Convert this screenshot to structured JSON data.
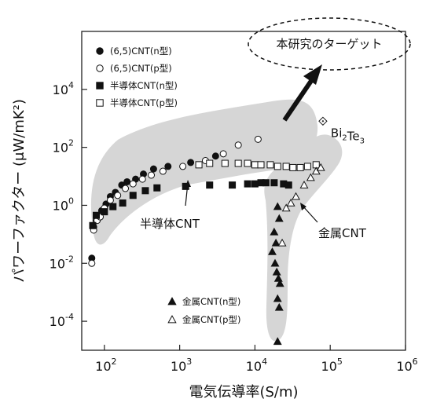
{
  "chart_data": {
    "type": "scatter",
    "xlabel": "電気伝導率(S/m)",
    "ylabel": "パワーファクター (μW/mK²)",
    "x_scale": "log",
    "y_scale": "log",
    "xlim": [
      50,
      1000000
    ],
    "ylim": [
      1e-05,
      1000000
    ],
    "x_ticks": [
      {
        "value": 100,
        "base": "10",
        "exp": "2"
      },
      {
        "value": 1000,
        "base": "10",
        "exp": "3"
      },
      {
        "value": 10000,
        "base": "10",
        "exp": "4"
      },
      {
        "value": 100000,
        "base": "10",
        "exp": "5"
      },
      {
        "value": 1000000,
        "base": "10",
        "exp": "6"
      }
    ],
    "y_ticks": [
      {
        "value": 0.0001,
        "base": "10",
        "exp": "-4"
      },
      {
        "value": 0.01,
        "base": "10",
        "exp": "-2"
      },
      {
        "value": 1,
        "base": "10",
        "exp": "0"
      },
      {
        "value": 100,
        "base": "10",
        "exp": "2"
      },
      {
        "value": 10000,
        "base": "10",
        "exp": "4"
      }
    ],
    "grid": false,
    "legend_position": "top-left (upper) and bottom (metallic series)",
    "series": [
      {
        "name": "(6,5)CNT(n型)",
        "marker": "circle-filled",
        "points": [
          [
            68,
            0.015
          ],
          [
            72,
            0.18
          ],
          [
            78,
            0.3
          ],
          [
            85,
            0.45
          ],
          [
            92,
            0.65
          ],
          [
            105,
            1.1
          ],
          [
            120,
            2.0
          ],
          [
            140,
            2.8
          ],
          [
            170,
            5.0
          ],
          [
            200,
            6.5
          ],
          [
            260,
            8.0
          ],
          [
            330,
            12
          ],
          [
            450,
            18
          ],
          [
            700,
            22
          ],
          [
            1400,
            30
          ],
          [
            3000,
            50
          ]
        ]
      },
      {
        "name": "(6,5)CNT(p型)",
        "marker": "circle-open",
        "points": [
          [
            68,
            0.01
          ],
          [
            72,
            0.14
          ],
          [
            80,
            0.3
          ],
          [
            88,
            0.4
          ],
          [
            100,
            0.8
          ],
          [
            120,
            1.5
          ],
          [
            150,
            2.2
          ],
          [
            190,
            3.8
          ],
          [
            240,
            5.5
          ],
          [
            320,
            8.0
          ],
          [
            420,
            11
          ],
          [
            600,
            15
          ],
          [
            1100,
            22
          ],
          [
            2200,
            35
          ],
          [
            3800,
            60
          ],
          [
            6000,
            120
          ],
          [
            11000,
            190
          ]
        ]
      },
      {
        "name": "半導体CNT(n型)",
        "marker": "square-filled",
        "points": [
          [
            70,
            0.2
          ],
          [
            78,
            0.45
          ],
          [
            100,
            0.6
          ],
          [
            130,
            0.9
          ],
          [
            175,
            1.2
          ],
          [
            240,
            2.2
          ],
          [
            350,
            3.2
          ],
          [
            500,
            4.0
          ],
          [
            1200,
            4.5
          ],
          [
            2500,
            5.0
          ],
          [
            5000,
            5.0
          ],
          [
            8000,
            5.5
          ],
          [
            10000,
            5.5
          ],
          [
            12000,
            6.0
          ],
          [
            14000,
            6.0
          ],
          [
            18000,
            6.0
          ],
          [
            24000,
            5.5
          ],
          [
            28000,
            5.0
          ]
        ]
      },
      {
        "name": "半導体CNT(p型)",
        "marker": "square-open",
        "points": [
          [
            1800,
            25
          ],
          [
            2500,
            28
          ],
          [
            4000,
            28
          ],
          [
            6000,
            28
          ],
          [
            8000,
            28
          ],
          [
            10000,
            25
          ],
          [
            12000,
            25
          ],
          [
            16000,
            25
          ],
          [
            20000,
            22
          ],
          [
            26000,
            22
          ],
          [
            32000,
            20
          ],
          [
            40000,
            20
          ],
          [
            50000,
            22
          ],
          [
            65000,
            25
          ]
        ]
      },
      {
        "name": "金属CNT(n型)",
        "marker": "triangle-filled",
        "points": [
          [
            20000,
            0.9
          ],
          [
            21000,
            0.35
          ],
          [
            18000,
            0.12
          ],
          [
            19000,
            0.05
          ],
          [
            17000,
            0.025
          ],
          [
            18500,
            0.01
          ],
          [
            19500,
            0.005
          ],
          [
            20500,
            0.003
          ],
          [
            21500,
            0.002
          ],
          [
            20000,
            0.0006
          ],
          [
            21000,
            0.0003
          ],
          [
            20000,
            2e-05
          ]
        ]
      },
      {
        "name": "金属CNT(p型)",
        "marker": "triangle-open",
        "points": [
          [
            23000,
            0.05
          ],
          [
            26000,
            0.8
          ],
          [
            30000,
            1.2
          ],
          [
            35000,
            2.0
          ],
          [
            45000,
            5.0
          ],
          [
            55000,
            9.0
          ],
          [
            65000,
            15
          ],
          [
            75000,
            20
          ]
        ]
      }
    ],
    "reference_point": {
      "label": "Bi2Te3",
      "x": 80000,
      "y": 800,
      "marker": "diamond-dotted"
    },
    "annotations": [
      {
        "id": "semiconductor",
        "text": "半導体CNT"
      },
      {
        "id": "metallic",
        "text": "金属CNT"
      },
      {
        "id": "target",
        "text": "本研究のターゲット"
      }
    ]
  }
}
